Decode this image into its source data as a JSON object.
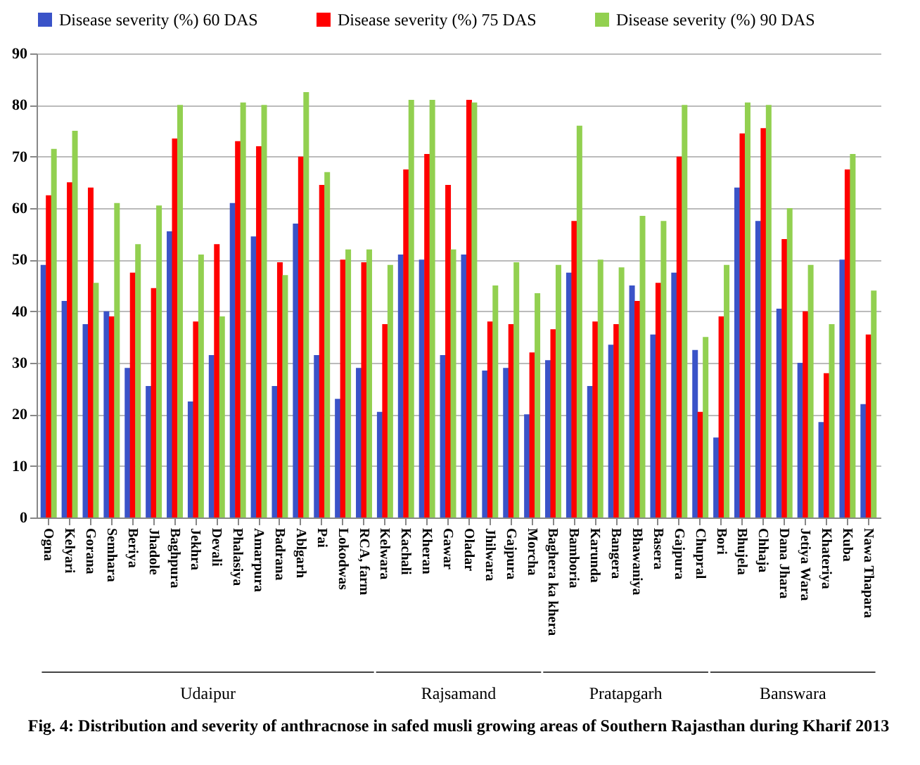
{
  "chart_data": {
    "type": "bar",
    "categories": [
      "Ogna",
      "Kelyari",
      "Gorana",
      "Semhara",
      "Beriya",
      "Jhadole",
      "Baghpura",
      "Jekhra",
      "Devali",
      "Phalasiya",
      "Amarpura",
      "Badrana",
      "Ablgarh",
      "Pai",
      "Lokodwas",
      "RCA, farm",
      "Kelwara",
      "Kachali",
      "Kheran",
      "Gawar",
      "Oladar",
      "Jhilwara",
      "Gajpura",
      "Morcha",
      "Baghera ka khera",
      "Bamboria",
      "Karunda",
      "Bangera",
      "Bhawaniya",
      "Basera",
      "Gajpura",
      "Chupral",
      "Bori",
      "Bhujela",
      "Chhaja",
      "Dana Jhara",
      "Jetiya Wara",
      "Khateriya",
      "Kuba",
      "Nawa Thapara"
    ],
    "series": [
      {
        "name": "Disease severity (%) 60 DAS",
        "color": "#3a53c8",
        "values": [
          49,
          42,
          37.5,
          40,
          29,
          25.5,
          55.5,
          22.5,
          31.5,
          61,
          54.5,
          25.5,
          57,
          31.5,
          23,
          29,
          20.5,
          51,
          50,
          31.5,
          51,
          28.5,
          29,
          20,
          30.5,
          47.5,
          25.5,
          33.5,
          45,
          35.5,
          47.5,
          32.5,
          15.5,
          64,
          57.5,
          40.5,
          30,
          18.5,
          50,
          22
        ]
      },
      {
        "name": "Disease severity (%) 75 DAS",
        "color": "#ff0000",
        "values": [
          62.5,
          65,
          64,
          39,
          47.5,
          44.5,
          73.5,
          38,
          53,
          73,
          72,
          49.5,
          70,
          64.5,
          50,
          49.5,
          37.5,
          67.5,
          70.5,
          64.5,
          81,
          38,
          37.5,
          32,
          36.5,
          57.5,
          38,
          37.5,
          42,
          45.5,
          70,
          20.5,
          39,
          74.5,
          75.5,
          54,
          40,
          28,
          67.5,
          35.5
        ]
      },
      {
        "name": "Disease severity (%) 90 DAS",
        "color": "#92d050",
        "values": [
          71.5,
          75,
          45.5,
          61,
          53,
          60.5,
          80,
          51,
          39,
          80.5,
          80,
          47,
          82.5,
          67,
          52,
          52,
          49,
          81,
          81,
          52,
          80.5,
          45,
          49.5,
          43.5,
          49,
          76,
          50,
          48.5,
          58.5,
          57.5,
          80,
          35,
          49,
          80.5,
          80,
          60,
          49,
          37.5,
          70.5,
          44
        ]
      }
    ],
    "ylim": [
      0,
      90
    ],
    "yticks": [
      0,
      10,
      20,
      30,
      40,
      50,
      60,
      70,
      80,
      90
    ],
    "grid": "y",
    "legend": "top",
    "annotations": [
      "Udaipur",
      "Rajsamand",
      "Pratapgarh",
      "Banswara",
      "Fig. 4: Distribution and severity of anthracnose in safed musli growing areas of Southern Rajasthan during Kharif  2013"
    ]
  }
}
